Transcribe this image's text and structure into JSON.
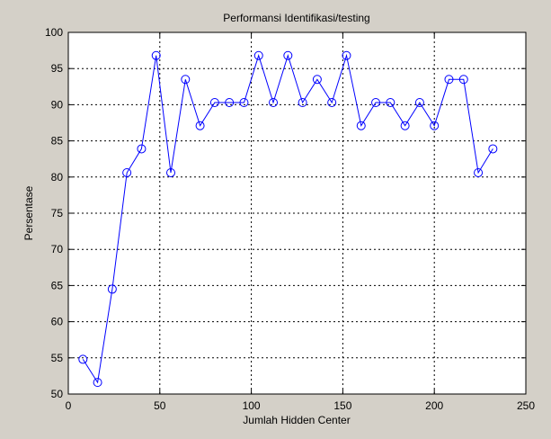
{
  "figure": {
    "background": "#d4d0c8",
    "axes_background": "#ffffff"
  },
  "chart_data": {
    "type": "line",
    "title": "Performansi Identifikasi/testing",
    "xlabel": "Jumlah Hidden Center",
    "ylabel": "Persentase",
    "xlim": [
      0,
      250
    ],
    "ylim": [
      50,
      100
    ],
    "xticks": [
      "0",
      "50",
      "100",
      "150",
      "200",
      "250"
    ],
    "yticks": [
      "50",
      "55",
      "60",
      "65",
      "70",
      "75",
      "80",
      "85",
      "90",
      "95",
      "100"
    ],
    "grid": true,
    "grid_style": "dotted",
    "marker": "circle",
    "line_color": "#0000ff",
    "series": [
      {
        "x": [
          8,
          16,
          24,
          32,
          40,
          48,
          56,
          64,
          72,
          80,
          88,
          96,
          104,
          112,
          120,
          128,
          136,
          144,
          152,
          160,
          168,
          176,
          184,
          192,
          200,
          208,
          216,
          224,
          232
        ],
        "y": [
          54.8,
          51.6,
          64.5,
          80.6,
          83.9,
          96.8,
          80.6,
          93.5,
          87.1,
          90.3,
          90.3,
          90.3,
          96.8,
          90.3,
          96.8,
          90.3,
          93.5,
          90.3,
          96.8,
          87.1,
          90.3,
          90.3,
          87.1,
          90.3,
          87.1,
          93.5,
          93.5,
          80.6,
          83.9
        ]
      }
    ]
  }
}
